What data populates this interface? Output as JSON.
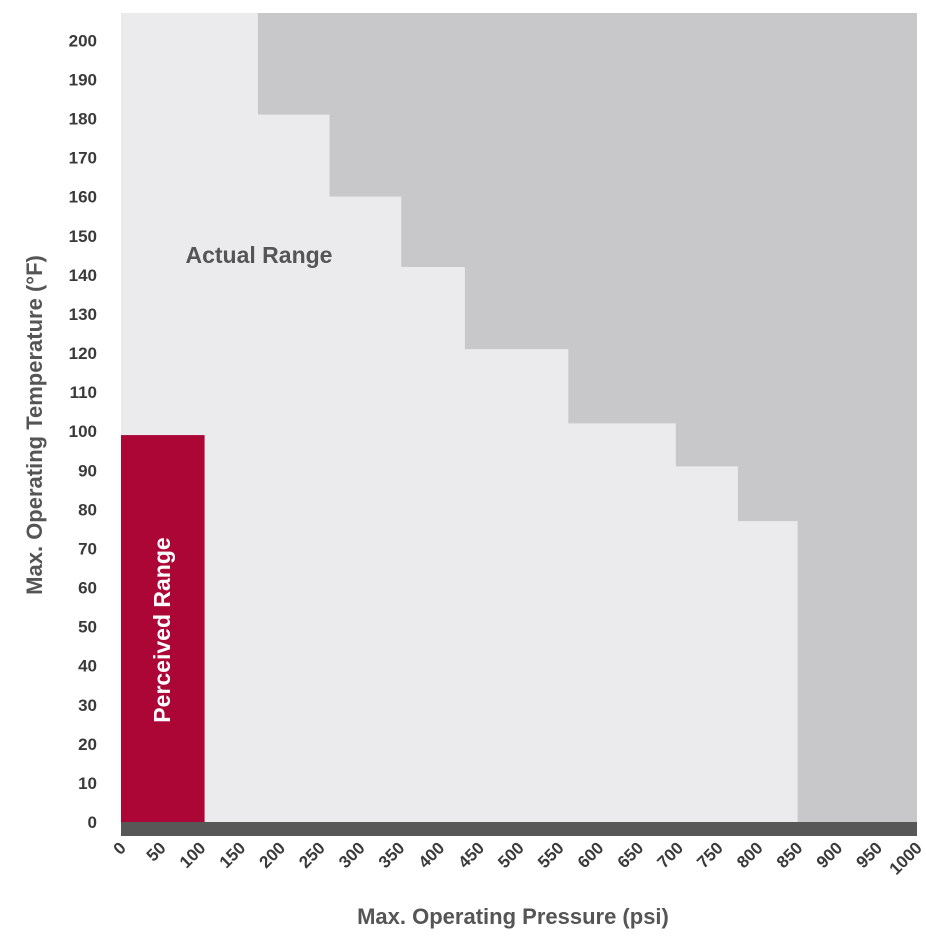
{
  "chart_data": {
    "type": "area",
    "xlabel": "Max. Operating Pressure (psi)",
    "ylabel": "Max. Operating Temperature (°F)",
    "xlim": [
      0,
      1000
    ],
    "ylim": [
      0,
      207
    ],
    "x_ticks": [
      0,
      50,
      100,
      150,
      200,
      250,
      300,
      350,
      400,
      450,
      500,
      550,
      600,
      650,
      700,
      750,
      800,
      850,
      900,
      950,
      1000
    ],
    "y_ticks": [
      0,
      10,
      20,
      30,
      40,
      50,
      60,
      70,
      80,
      90,
      100,
      110,
      120,
      130,
      140,
      150,
      160,
      170,
      180,
      190,
      200
    ],
    "actual_range": {
      "label": "Actual Range",
      "steps": [
        {
          "x_start": 0,
          "x_end": 172,
          "y": 207
        },
        {
          "x_start": 172,
          "x_end": 262,
          "y": 181
        },
        {
          "x_start": 262,
          "x_end": 352,
          "y": 160
        },
        {
          "x_start": 352,
          "x_end": 432,
          "y": 142
        },
        {
          "x_start": 432,
          "x_end": 562,
          "y": 121
        },
        {
          "x_start": 562,
          "x_end": 697,
          "y": 102
        },
        {
          "x_start": 697,
          "x_end": 775,
          "y": 91
        },
        {
          "x_start": 775,
          "x_end": 850,
          "y": 77
        }
      ]
    },
    "perceived_range": {
      "label": "Perceived Range",
      "x_max": 105,
      "y_max": 99
    },
    "colors": {
      "background_region": "#c8c8ca",
      "actual_range": "#ebebed",
      "perceived_range": "#ab0635",
      "axis_bar": "#575757",
      "annotation_text": "#555555",
      "perceived_text": "#ffffff"
    }
  }
}
